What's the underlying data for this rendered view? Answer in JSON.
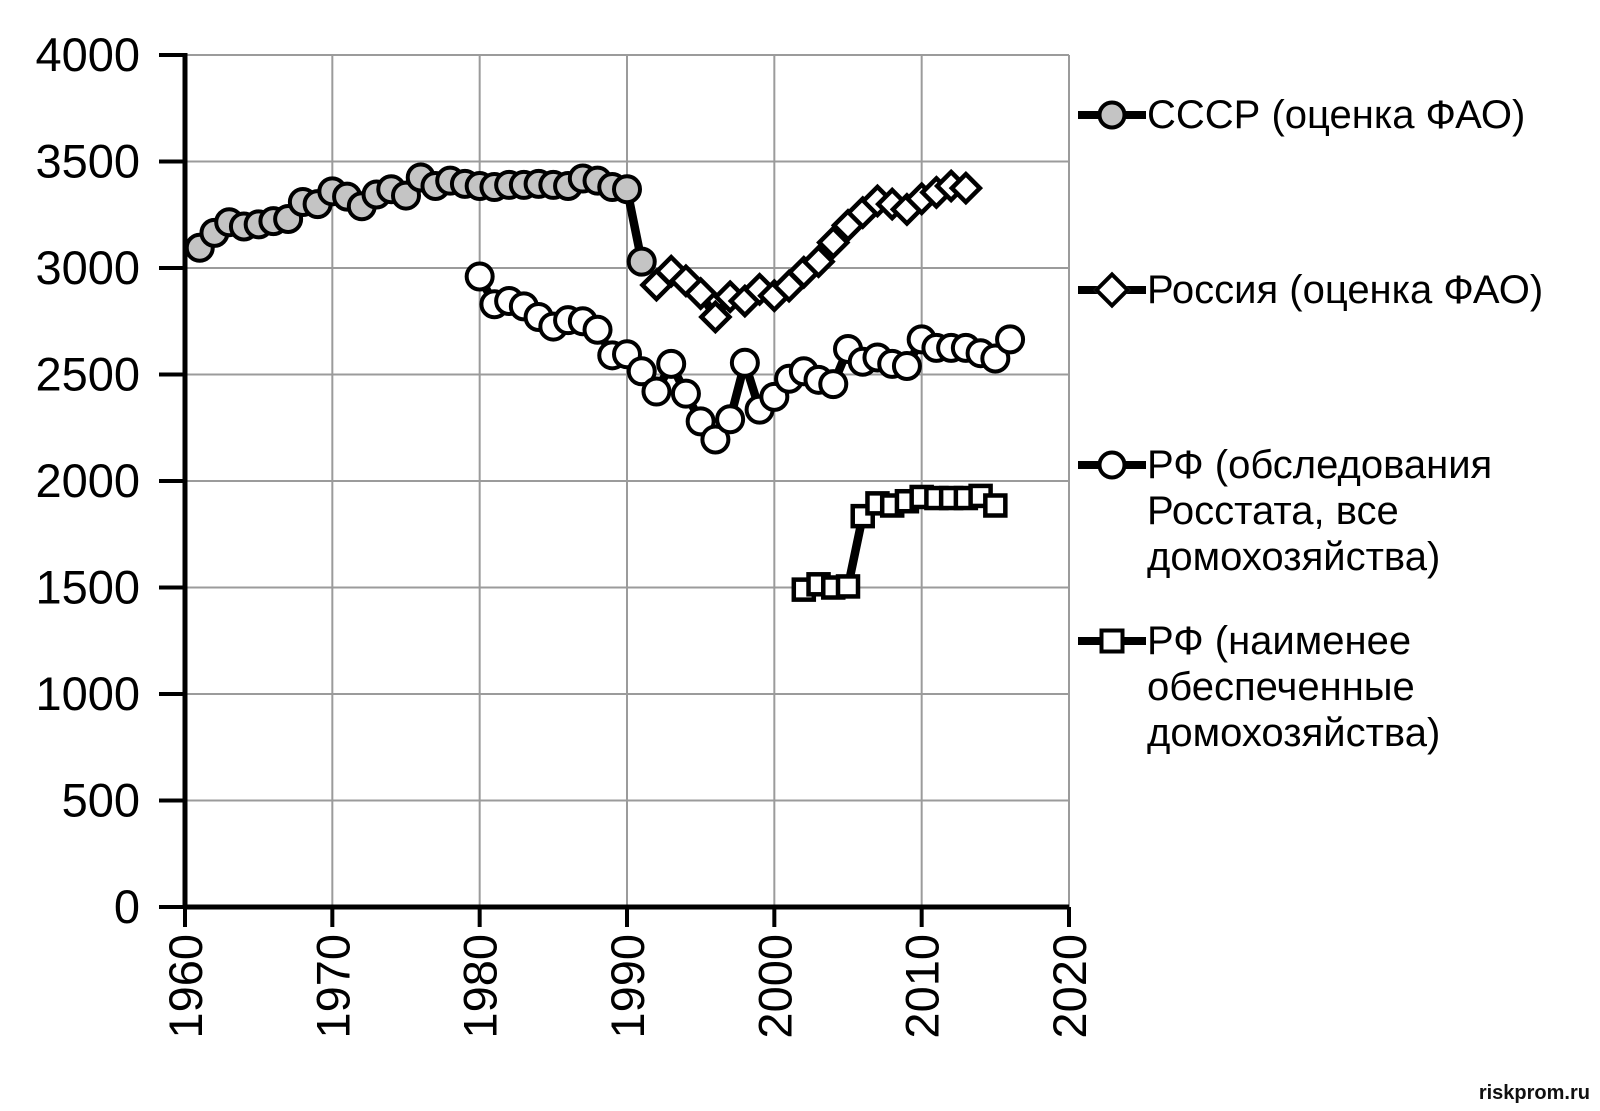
{
  "watermark": "riskprom.ru",
  "chart_data": {
    "type": "line",
    "title": "",
    "xlabel": "",
    "ylabel": "",
    "xlim": [
      1960,
      2020
    ],
    "ylim": [
      0,
      4000
    ],
    "x_ticks": [
      1960,
      1970,
      1980,
      1990,
      2000,
      2010,
      2020
    ],
    "y_ticks": [
      0,
      500,
      1000,
      1500,
      2000,
      2500,
      3000,
      3500,
      4000
    ],
    "grid": true,
    "legend_position": "right",
    "colors": {
      "series_line": "#000000",
      "grid": "#9b9b9b",
      "axis": "#000000",
      "ussr_marker_fill": "#c4c4c4",
      "white_marker_fill": "#ffffff"
    },
    "series": [
      {
        "name": "СССР (оценка ФАО)",
        "marker": "circle",
        "fill": "gray",
        "years": [
          1961,
          1962,
          1963,
          1964,
          1965,
          1966,
          1967,
          1968,
          1969,
          1970,
          1971,
          1972,
          1973,
          1974,
          1975,
          1976,
          1977,
          1978,
          1979,
          1980,
          1981,
          1982,
          1983,
          1984,
          1985,
          1986,
          1987,
          1988,
          1989,
          1990,
          1991
        ],
        "values": [
          3095,
          3165,
          3215,
          3195,
          3205,
          3220,
          3230,
          3310,
          3300,
          3360,
          3335,
          3290,
          3345,
          3370,
          3340,
          3425,
          3385,
          3410,
          3395,
          3385,
          3380,
          3390,
          3390,
          3395,
          3390,
          3385,
          3420,
          3410,
          3380,
          3370,
          3030
        ]
      },
      {
        "name": "Россия (оценка ФАО)",
        "marker": "diamond",
        "fill": "white",
        "years": [
          1992,
          1993,
          1994,
          1995,
          1996,
          1997,
          1998,
          1999,
          2000,
          2001,
          2002,
          2003,
          2004,
          2005,
          2006,
          2007,
          2008,
          2009,
          2010,
          2011,
          2012,
          2013
        ],
        "values": [
          2920,
          2985,
          2940,
          2880,
          2770,
          2865,
          2845,
          2900,
          2870,
          2915,
          2980,
          3030,
          3120,
          3200,
          3260,
          3315,
          3300,
          3275,
          3325,
          3355,
          3385,
          3375
        ]
      },
      {
        "name": "РФ (обследования\nРосстата, все\nдомохозяйства)",
        "marker": "circle",
        "fill": "white",
        "years": [
          1980,
          1981,
          1982,
          1983,
          1984,
          1985,
          1986,
          1987,
          1988,
          1989,
          1990,
          1991,
          1992,
          1993,
          1994,
          1995,
          1996,
          1997,
          1998,
          1999,
          2000,
          2001,
          2002,
          2003,
          2004,
          2005,
          2006,
          2007,
          2008,
          2009,
          2010,
          2011,
          2012,
          2013,
          2014,
          2015,
          2016
        ],
        "values": [
          2960,
          2830,
          2845,
          2820,
          2770,
          2725,
          2755,
          2750,
          2710,
          2590,
          2595,
          2515,
          2420,
          2550,
          2410,
          2280,
          2195,
          2290,
          2555,
          2335,
          2395,
          2480,
          2515,
          2475,
          2455,
          2620,
          2560,
          2580,
          2550,
          2540,
          2665,
          2625,
          2625,
          2625,
          2600,
          2575,
          2665
        ]
      },
      {
        "name": "РФ (наименее\nобеспеченные\nдомохозяйства)",
        "marker": "square",
        "fill": "white",
        "years": [
          2002,
          2003,
          2004,
          2005,
          2006,
          2007,
          2008,
          2009,
          2010,
          2011,
          2012,
          2013,
          2014,
          2015
        ],
        "values": [
          1490,
          1515,
          1500,
          1505,
          1835,
          1895,
          1885,
          1905,
          1925,
          1920,
          1920,
          1920,
          1930,
          1885
        ]
      }
    ]
  }
}
